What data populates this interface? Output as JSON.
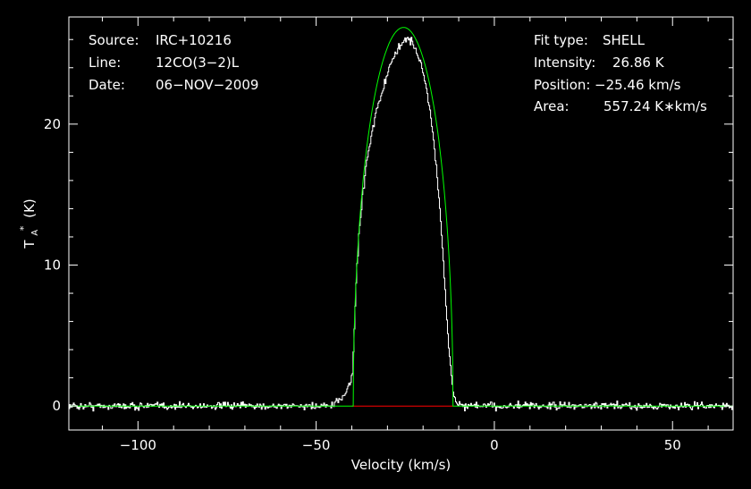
{
  "chart_data": {
    "type": "line",
    "title": "",
    "xlabel": "Velocity (km/s)",
    "ylabel": "T",
    "ylabel_sub": "A",
    "ylabel_sup": "*",
    "ylabel_unit": "(K)",
    "xlim": [
      -119.4,
      67.0
    ],
    "ylim": [
      -1.7,
      27.6
    ],
    "x_ticks": [
      -100,
      -50,
      0,
      50
    ],
    "x_tick_labels": [
      "−100",
      "−50",
      "0",
      "50"
    ],
    "y_ticks": [
      0,
      10,
      20
    ],
    "y_tick_labels": [
      "0",
      "10",
      "20"
    ],
    "x_minor_step": 10,
    "y_minor_step": 2,
    "info_left": [
      {
        "label": "Source:",
        "value": "IRC+10216"
      },
      {
        "label": "Line:",
        "value": "12CO(3−2)L"
      },
      {
        "label": "Date:",
        "value": "06−NOV−2009"
      }
    ],
    "info_right": [
      {
        "label": "Fit type:",
        "value": "SHELL"
      },
      {
        "label": "Intensity:",
        "value": "26.86 K"
      },
      {
        "label": "Position:",
        "value": "−25.46 km/s"
      },
      {
        "label": "Area:",
        "value": "557.24 K∗km/s"
      }
    ],
    "series": [
      {
        "role": "observed spectrum",
        "color": "#ffffff",
        "x_range": [
          -119.4,
          67.0
        ],
        "noise_rms": 0.18,
        "points": [
          [
            -45.0,
            0.05
          ],
          [
            -44.0,
            0.3
          ],
          [
            -43.0,
            0.6
          ],
          [
            -42.0,
            0.9
          ],
          [
            -41.0,
            1.4
          ],
          [
            -40.0,
            2.0
          ],
          [
            -39.5,
            4.5
          ],
          [
            -39.0,
            8.5
          ],
          [
            -38.0,
            12.5
          ],
          [
            -37.0,
            15.2
          ],
          [
            -36.0,
            17.2
          ],
          [
            -35.0,
            18.7
          ],
          [
            -34.0,
            20.0
          ],
          [
            -33.0,
            21.1
          ],
          [
            -32.0,
            22.0
          ],
          [
            -31.0,
            22.8
          ],
          [
            -30.0,
            23.6
          ],
          [
            -29.0,
            24.3
          ],
          [
            -28.0,
            24.9
          ],
          [
            -27.0,
            25.4
          ],
          [
            -26.0,
            25.8
          ],
          [
            -25.0,
            26.0
          ],
          [
            -24.0,
            26.0
          ],
          [
            -23.0,
            25.7
          ],
          [
            -22.0,
            25.2
          ],
          [
            -21.0,
            24.5
          ],
          [
            -20.0,
            23.6
          ],
          [
            -19.0,
            22.3
          ],
          [
            -18.0,
            20.6
          ],
          [
            -17.0,
            18.5
          ],
          [
            -16.0,
            15.9
          ],
          [
            -15.0,
            12.6
          ],
          [
            -14.0,
            8.7
          ],
          [
            -13.0,
            4.4
          ],
          [
            -12.0,
            1.5
          ],
          [
            -11.5,
            0.8
          ],
          [
            -11.0,
            0.4
          ],
          [
            -10.0,
            0.15
          ],
          [
            -9.0,
            0.05
          ]
        ]
      },
      {
        "role": "shell fit",
        "color": "#00ff00",
        "peak": 26.86,
        "center": -25.46,
        "v_min": -39.6,
        "v_max": -11.6,
        "skew": 0.06,
        "x_range": [
          -119.4,
          67.0
        ]
      },
      {
        "role": "fit window baseline",
        "color": "#ff0000",
        "x": [
          -40.0,
          -11.6
        ],
        "y": [
          0,
          0
        ]
      }
    ]
  }
}
